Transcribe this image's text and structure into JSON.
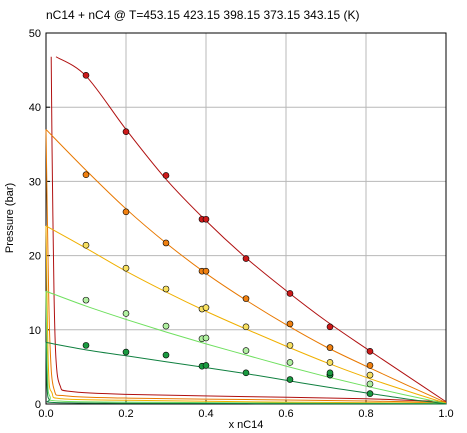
{
  "chart_data": {
    "type": "scatter",
    "title": "nC14 + nC4 @ T=453.15 423.15 398.15 373.15 343.15 (K)",
    "xlabel": "x nC14",
    "ylabel": "Pressure (bar)",
    "xlim": [
      0,
      1
    ],
    "ylim": [
      0,
      50
    ],
    "xticks": [
      "0.0",
      "0.2",
      "0.4",
      "0.6",
      "0.8",
      "1.0"
    ],
    "yticks": [
      "0",
      "10",
      "20",
      "30",
      "40",
      "50"
    ],
    "grid": true,
    "legend": "none",
    "series": [
      {
        "color": "#b01010",
        "fill": "#cc1a1a",
        "points": [
          [
            0.1,
            44.3
          ],
          [
            0.2,
            36.7
          ],
          [
            0.3,
            30.8
          ],
          [
            0.39,
            24.9
          ],
          [
            0.4,
            24.9
          ],
          [
            0.5,
            19.6
          ],
          [
            0.61,
            14.9
          ],
          [
            0.71,
            10.4
          ],
          [
            0.81,
            7.1
          ]
        ],
        "bubble": [
          [
            0.025,
            46.8
          ],
          [
            0.1,
            44.2
          ],
          [
            0.2,
            37.0
          ],
          [
            0.3,
            30.3
          ],
          [
            0.4,
            24.7
          ],
          [
            0.5,
            19.7
          ],
          [
            0.6,
            15.3
          ],
          [
            0.7,
            11.2
          ],
          [
            0.8,
            7.5
          ],
          [
            0.9,
            3.9
          ],
          [
            1.0,
            0.3
          ]
        ],
        "dew": [
          [
            1.0,
            0.3
          ],
          [
            0.8,
            0.7
          ],
          [
            0.5,
            1.0
          ],
          [
            0.2,
            1.3
          ],
          [
            0.06,
            1.7
          ],
          [
            0.035,
            2.5
          ],
          [
            0.025,
            6.0
          ],
          [
            0.02,
            15.0
          ],
          [
            0.015,
            35.0
          ],
          [
            0.013,
            46.8
          ]
        ]
      },
      {
        "color": "#e87800",
        "fill": "#f08010",
        "points": [
          [
            0.1,
            30.9
          ],
          [
            0.2,
            25.9
          ],
          [
            0.3,
            21.7
          ],
          [
            0.39,
            17.9
          ],
          [
            0.4,
            17.9
          ],
          [
            0.5,
            14.2
          ],
          [
            0.61,
            10.8
          ],
          [
            0.71,
            7.6
          ],
          [
            0.81,
            5.2
          ]
        ],
        "bubble": [
          [
            0.0,
            37.0
          ],
          [
            0.1,
            31.5
          ],
          [
            0.2,
            26.3
          ],
          [
            0.3,
            21.7
          ],
          [
            0.4,
            17.6
          ],
          [
            0.5,
            14.0
          ],
          [
            0.6,
            10.7
          ],
          [
            0.7,
            7.7
          ],
          [
            0.8,
            5.1
          ],
          [
            0.9,
            2.6
          ],
          [
            1.0,
            0.2
          ]
        ],
        "dew": [
          [
            1.0,
            0.2
          ],
          [
            0.8,
            0.4
          ],
          [
            0.5,
            0.6
          ],
          [
            0.2,
            0.8
          ],
          [
            0.05,
            1.1
          ],
          [
            0.02,
            2.0
          ],
          [
            0.01,
            8.0
          ],
          [
            0.005,
            20.0
          ],
          [
            0.0,
            37.0
          ]
        ]
      },
      {
        "color": "#f0b000",
        "fill": "#f8e060",
        "points": [
          [
            0.1,
            21.4
          ],
          [
            0.2,
            18.3
          ],
          [
            0.3,
            15.5
          ],
          [
            0.39,
            12.8
          ],
          [
            0.4,
            13.0
          ],
          [
            0.5,
            10.4
          ],
          [
            0.61,
            7.9
          ],
          [
            0.71,
            5.6
          ],
          [
            0.81,
            3.9
          ]
        ],
        "bubble": [
          [
            0.0,
            24.0
          ],
          [
            0.1,
            21.0
          ],
          [
            0.2,
            17.9
          ],
          [
            0.3,
            15.1
          ],
          [
            0.4,
            12.5
          ],
          [
            0.5,
            10.1
          ],
          [
            0.6,
            7.8
          ],
          [
            0.7,
            5.6
          ],
          [
            0.8,
            3.6
          ],
          [
            0.9,
            1.8
          ],
          [
            1.0,
            0.1
          ]
        ],
        "dew": [
          [
            1.0,
            0.1
          ],
          [
            0.5,
            0.3
          ],
          [
            0.2,
            0.5
          ],
          [
            0.04,
            0.7
          ],
          [
            0.015,
            1.5
          ],
          [
            0.006,
            5.0
          ],
          [
            0.0,
            24.0
          ]
        ]
      },
      {
        "color": "#70e060",
        "fill": "#b0f0a0",
        "points": [
          [
            0.1,
            14.0
          ],
          [
            0.2,
            12.2
          ],
          [
            0.3,
            10.5
          ],
          [
            0.39,
            8.8
          ],
          [
            0.4,
            8.9
          ],
          [
            0.5,
            7.2
          ],
          [
            0.61,
            5.6
          ],
          [
            0.71,
            3.9
          ],
          [
            0.81,
            2.7
          ]
        ],
        "bubble": [
          [
            0.0,
            15.2
          ],
          [
            0.1,
            13.2
          ],
          [
            0.2,
            11.4
          ],
          [
            0.3,
            9.7
          ],
          [
            0.4,
            8.1
          ],
          [
            0.5,
            6.6
          ],
          [
            0.6,
            5.1
          ],
          [
            0.7,
            3.7
          ],
          [
            0.8,
            2.4
          ],
          [
            0.9,
            1.2
          ],
          [
            1.0,
            0.05
          ]
        ],
        "dew": [
          [
            1.0,
            0.05
          ],
          [
            0.5,
            0.15
          ],
          [
            0.2,
            0.25
          ],
          [
            0.03,
            0.4
          ],
          [
            0.01,
            1.0
          ],
          [
            0.004,
            3.5
          ],
          [
            0.0,
            15.2
          ]
        ]
      },
      {
        "color": "#108040",
        "fill": "#1a9a40",
        "points": [
          [
            0.1,
            7.9
          ],
          [
            0.2,
            7.0
          ],
          [
            0.3,
            6.6
          ],
          [
            0.39,
            5.1
          ],
          [
            0.4,
            5.2
          ],
          [
            0.5,
            4.2
          ],
          [
            0.61,
            3.3
          ],
          [
            0.71,
            3.9
          ],
          [
            0.71,
            4.2
          ],
          [
            0.81,
            1.4
          ]
        ],
        "bubble": [
          [
            0.0,
            8.3
          ],
          [
            0.1,
            7.3
          ],
          [
            0.2,
            6.5
          ],
          [
            0.3,
            5.7
          ],
          [
            0.4,
            4.9
          ],
          [
            0.5,
            4.1
          ],
          [
            0.6,
            3.2
          ],
          [
            0.7,
            2.3
          ],
          [
            0.8,
            1.5
          ],
          [
            0.9,
            0.7
          ],
          [
            1.0,
            0.02
          ]
        ],
        "dew": [
          [
            1.0,
            0.02
          ],
          [
            0.5,
            0.06
          ],
          [
            0.2,
            0.1
          ],
          [
            0.02,
            0.2
          ],
          [
            0.008,
            0.6
          ],
          [
            0.003,
            2.0
          ],
          [
            0.0,
            8.3
          ]
        ]
      }
    ]
  }
}
